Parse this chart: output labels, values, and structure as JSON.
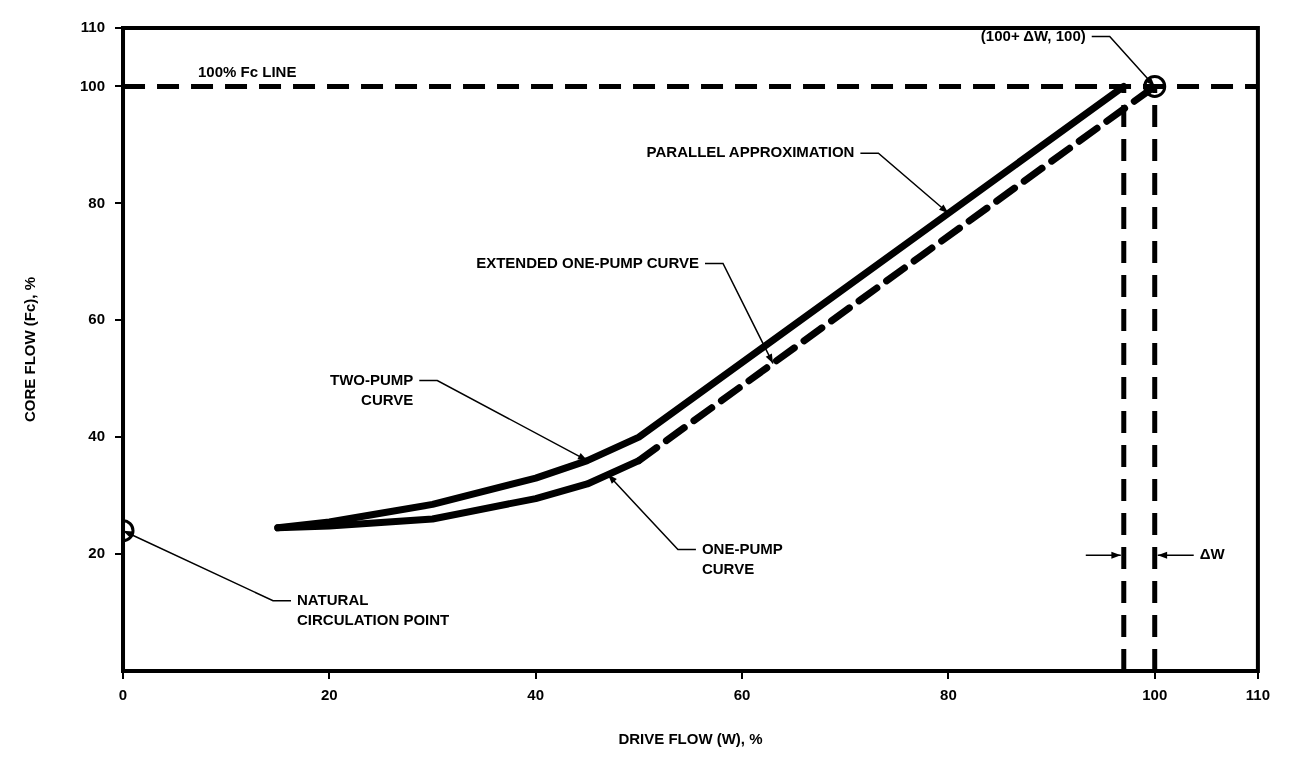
{
  "chart_data": {
    "type": "line",
    "xlabel": "DRIVE FLOW (W), %",
    "ylabel": "CORE FLOW (Fc), %",
    "xlim": [
      0,
      110
    ],
    "xticks": [
      0,
      20,
      40,
      60,
      80,
      100,
      110
    ],
    "ylim": [
      0,
      110
    ],
    "yticks": [
      20,
      40,
      60,
      80,
      100,
      110
    ],
    "grid": false,
    "legend": false,
    "marker": "none",
    "series": [
      {
        "type": "line",
        "color": "#000000",
        "line_style": "solid",
        "x": [
          15,
          20,
          30,
          40,
          45,
          50,
          97
        ],
        "values": [
          24.5,
          25.5,
          28.5,
          33,
          36,
          40,
          100
        ]
      },
      {
        "type": "line",
        "color": "#000000",
        "line_style": "solid",
        "x": [
          15,
          20,
          30,
          40,
          45,
          50
        ],
        "values": [
          24.5,
          24.8,
          26,
          29.5,
          32,
          36
        ]
      },
      {
        "type": "line",
        "color": "#000000",
        "line_style": "dashed",
        "x": [
          50,
          100
        ],
        "values": [
          36,
          100
        ]
      },
      {
        "type": "scatter",
        "color": "#000000",
        "marker": "circle",
        "x": [
          0
        ],
        "values": [
          24
        ]
      },
      {
        "type": "scatter",
        "color": "#000000",
        "marker": "circle",
        "x": [
          100
        ],
        "values": [
          100
        ]
      }
    ],
    "ref_lines": [
      {
        "axis": "y",
        "value": 100,
        "label": "100% Fc LINE",
        "color": "#000000",
        "line_style": "dashed"
      },
      {
        "axis": "x",
        "value": 97,
        "label": null,
        "color": "#000000",
        "line_style": "dashed"
      },
      {
        "axis": "x",
        "value": 100,
        "label": null,
        "color": "#000000",
        "line_style": "dashed"
      }
    ],
    "annotations": [
      {
        "text": "TWO-PUMP CURVE",
        "x": 45,
        "y": 36
      },
      {
        "text": "PARALLEL APPROXIMATION",
        "x": 80,
        "y": 78.3
      },
      {
        "text": "ONE-PUMP CURVE",
        "x": 47,
        "y": 33.6
      },
      {
        "text": "EXTENDED ONE-PUMP CURVE",
        "x": 63,
        "y": 52.6
      },
      {
        "text": "NATURAL CIRCULATION POINT",
        "x": 0,
        "y": 24
      },
      {
        "text": "(100+ ΔW, 100)",
        "x": 100,
        "y": 100
      },
      "ΔW"
    ]
  }
}
